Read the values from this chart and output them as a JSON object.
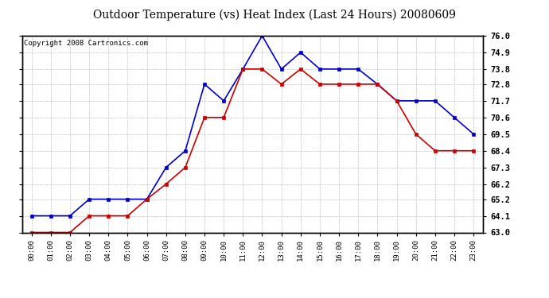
{
  "title": "Outdoor Temperature (vs) Heat Index (Last 24 Hours) 20080609",
  "copyright": "Copyright 2008 Cartronics.com",
  "hours": [
    "00:00",
    "01:00",
    "02:00",
    "03:00",
    "04:00",
    "05:00",
    "06:00",
    "07:00",
    "08:00",
    "09:00",
    "10:00",
    "11:00",
    "12:00",
    "13:00",
    "14:00",
    "15:00",
    "16:00",
    "17:00",
    "18:00",
    "19:00",
    "20:00",
    "21:00",
    "22:00",
    "23:00"
  ],
  "blue_temp": [
    64.1,
    64.1,
    64.1,
    65.2,
    65.2,
    65.2,
    65.2,
    67.3,
    68.4,
    72.8,
    71.7,
    73.8,
    76.0,
    73.8,
    74.9,
    73.8,
    73.8,
    73.8,
    72.8,
    71.7,
    71.7,
    71.7,
    70.6,
    69.5
  ],
  "red_heat": [
    63.0,
    63.0,
    63.0,
    64.1,
    64.1,
    64.1,
    65.2,
    66.2,
    67.3,
    70.6,
    70.6,
    73.8,
    73.8,
    72.8,
    73.8,
    72.8,
    72.8,
    72.8,
    72.8,
    71.7,
    69.5,
    68.4,
    68.4,
    68.4
  ],
  "ylim_min": 63.0,
  "ylim_max": 76.0,
  "yticks": [
    63.0,
    64.1,
    65.2,
    66.2,
    67.3,
    68.4,
    69.5,
    70.6,
    71.7,
    72.8,
    73.8,
    74.9,
    76.0
  ],
  "blue_color": "#0000cc",
  "red_color": "#cc0000",
  "bg_color": "#ffffff",
  "plot_bg_color": "#ffffff",
  "grid_color": "#aaaaaa",
  "title_fontsize": 10,
  "copyright_fontsize": 6.5
}
